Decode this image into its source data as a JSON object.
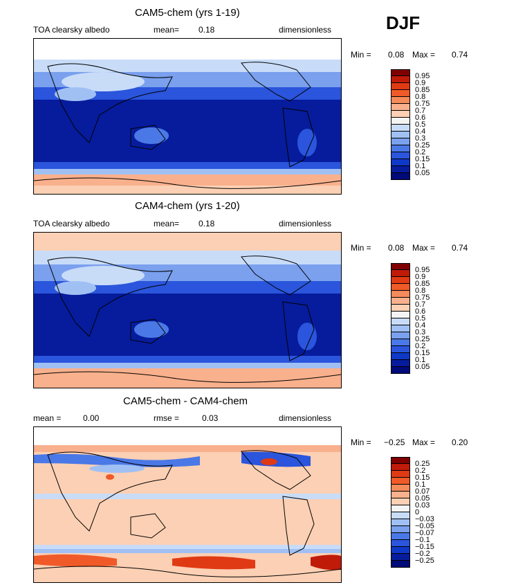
{
  "season": "DJF",
  "panels": [
    {
      "title": "CAM5-chem (yrs 1-19)",
      "left_label": "TOA clearsky albedo",
      "mean_label": "mean=",
      "mean_value": "0.18",
      "units": "dimensionless",
      "min_label": "Min =",
      "min_value": "0.08",
      "max_label": "Max =",
      "max_value": "0.74",
      "colorbar": {
        "labels": [
          "0.95",
          "0.9",
          "0.85",
          "0.8",
          "0.75",
          "0.7",
          "0.6",
          "0.5",
          "0.4",
          "0.3",
          "0.25",
          "0.2",
          "0.15",
          "0.1",
          "0.05"
        ],
        "colors": [
          "#800000",
          "#c01a08",
          "#e03a14",
          "#f05a28",
          "#f58a5a",
          "#f9b08c",
          "#fcd0b4",
          "#f4f4f4",
          "#c8dcf8",
          "#a0c0f4",
          "#7aa0ee",
          "#4a78e6",
          "#2a55dc",
          "#0e38c8",
          "#061c9c",
          "#000a78"
        ]
      }
    },
    {
      "title": "CAM4-chem (yrs 1-20)",
      "left_label": "TOA clearsky albedo",
      "mean_label": "mean=",
      "mean_value": "0.18",
      "units": "dimensionless",
      "min_label": "Min =",
      "min_value": "0.08",
      "max_label": "Max =",
      "max_value": "0.74",
      "colorbar": {
        "labels": [
          "0.95",
          "0.9",
          "0.85",
          "0.8",
          "0.75",
          "0.7",
          "0.6",
          "0.5",
          "0.4",
          "0.3",
          "0.25",
          "0.2",
          "0.15",
          "0.1",
          "0.05"
        ],
        "colors": [
          "#800000",
          "#c01a08",
          "#e03a14",
          "#f05a28",
          "#f58a5a",
          "#f9b08c",
          "#fcd0b4",
          "#f4f4f4",
          "#c8dcf8",
          "#a0c0f4",
          "#7aa0ee",
          "#4a78e6",
          "#2a55dc",
          "#0e38c8",
          "#061c9c",
          "#000a78"
        ]
      }
    },
    {
      "title": "CAM5-chem - CAM4-chem",
      "left_label": "mean =",
      "left_value": "0.00",
      "mean_label": "rmse =",
      "mean_value": "0.03",
      "units": "dimensionless",
      "min_label": "Min =",
      "min_value": "−0.25",
      "max_label": "Max =",
      "max_value": "0.20",
      "colorbar": {
        "labels": [
          "0.25",
          "0.2",
          "0.15",
          "0.1",
          "0.07",
          "0.05",
          "0.03",
          "0",
          "−0.03",
          "−0.05",
          "−0.07",
          "−0.1",
          "−0.15",
          "−0.2",
          "−0.25"
        ],
        "colors": [
          "#800000",
          "#c01a08",
          "#e03a14",
          "#f05a28",
          "#f58a5a",
          "#f9b08c",
          "#fcd0b4",
          "#f4f4f4",
          "#c8dcf8",
          "#a0c0f4",
          "#7aa0ee",
          "#4a78e6",
          "#2a55dc",
          "#0e38c8",
          "#061c9c",
          "#000a78"
        ]
      }
    }
  ]
}
